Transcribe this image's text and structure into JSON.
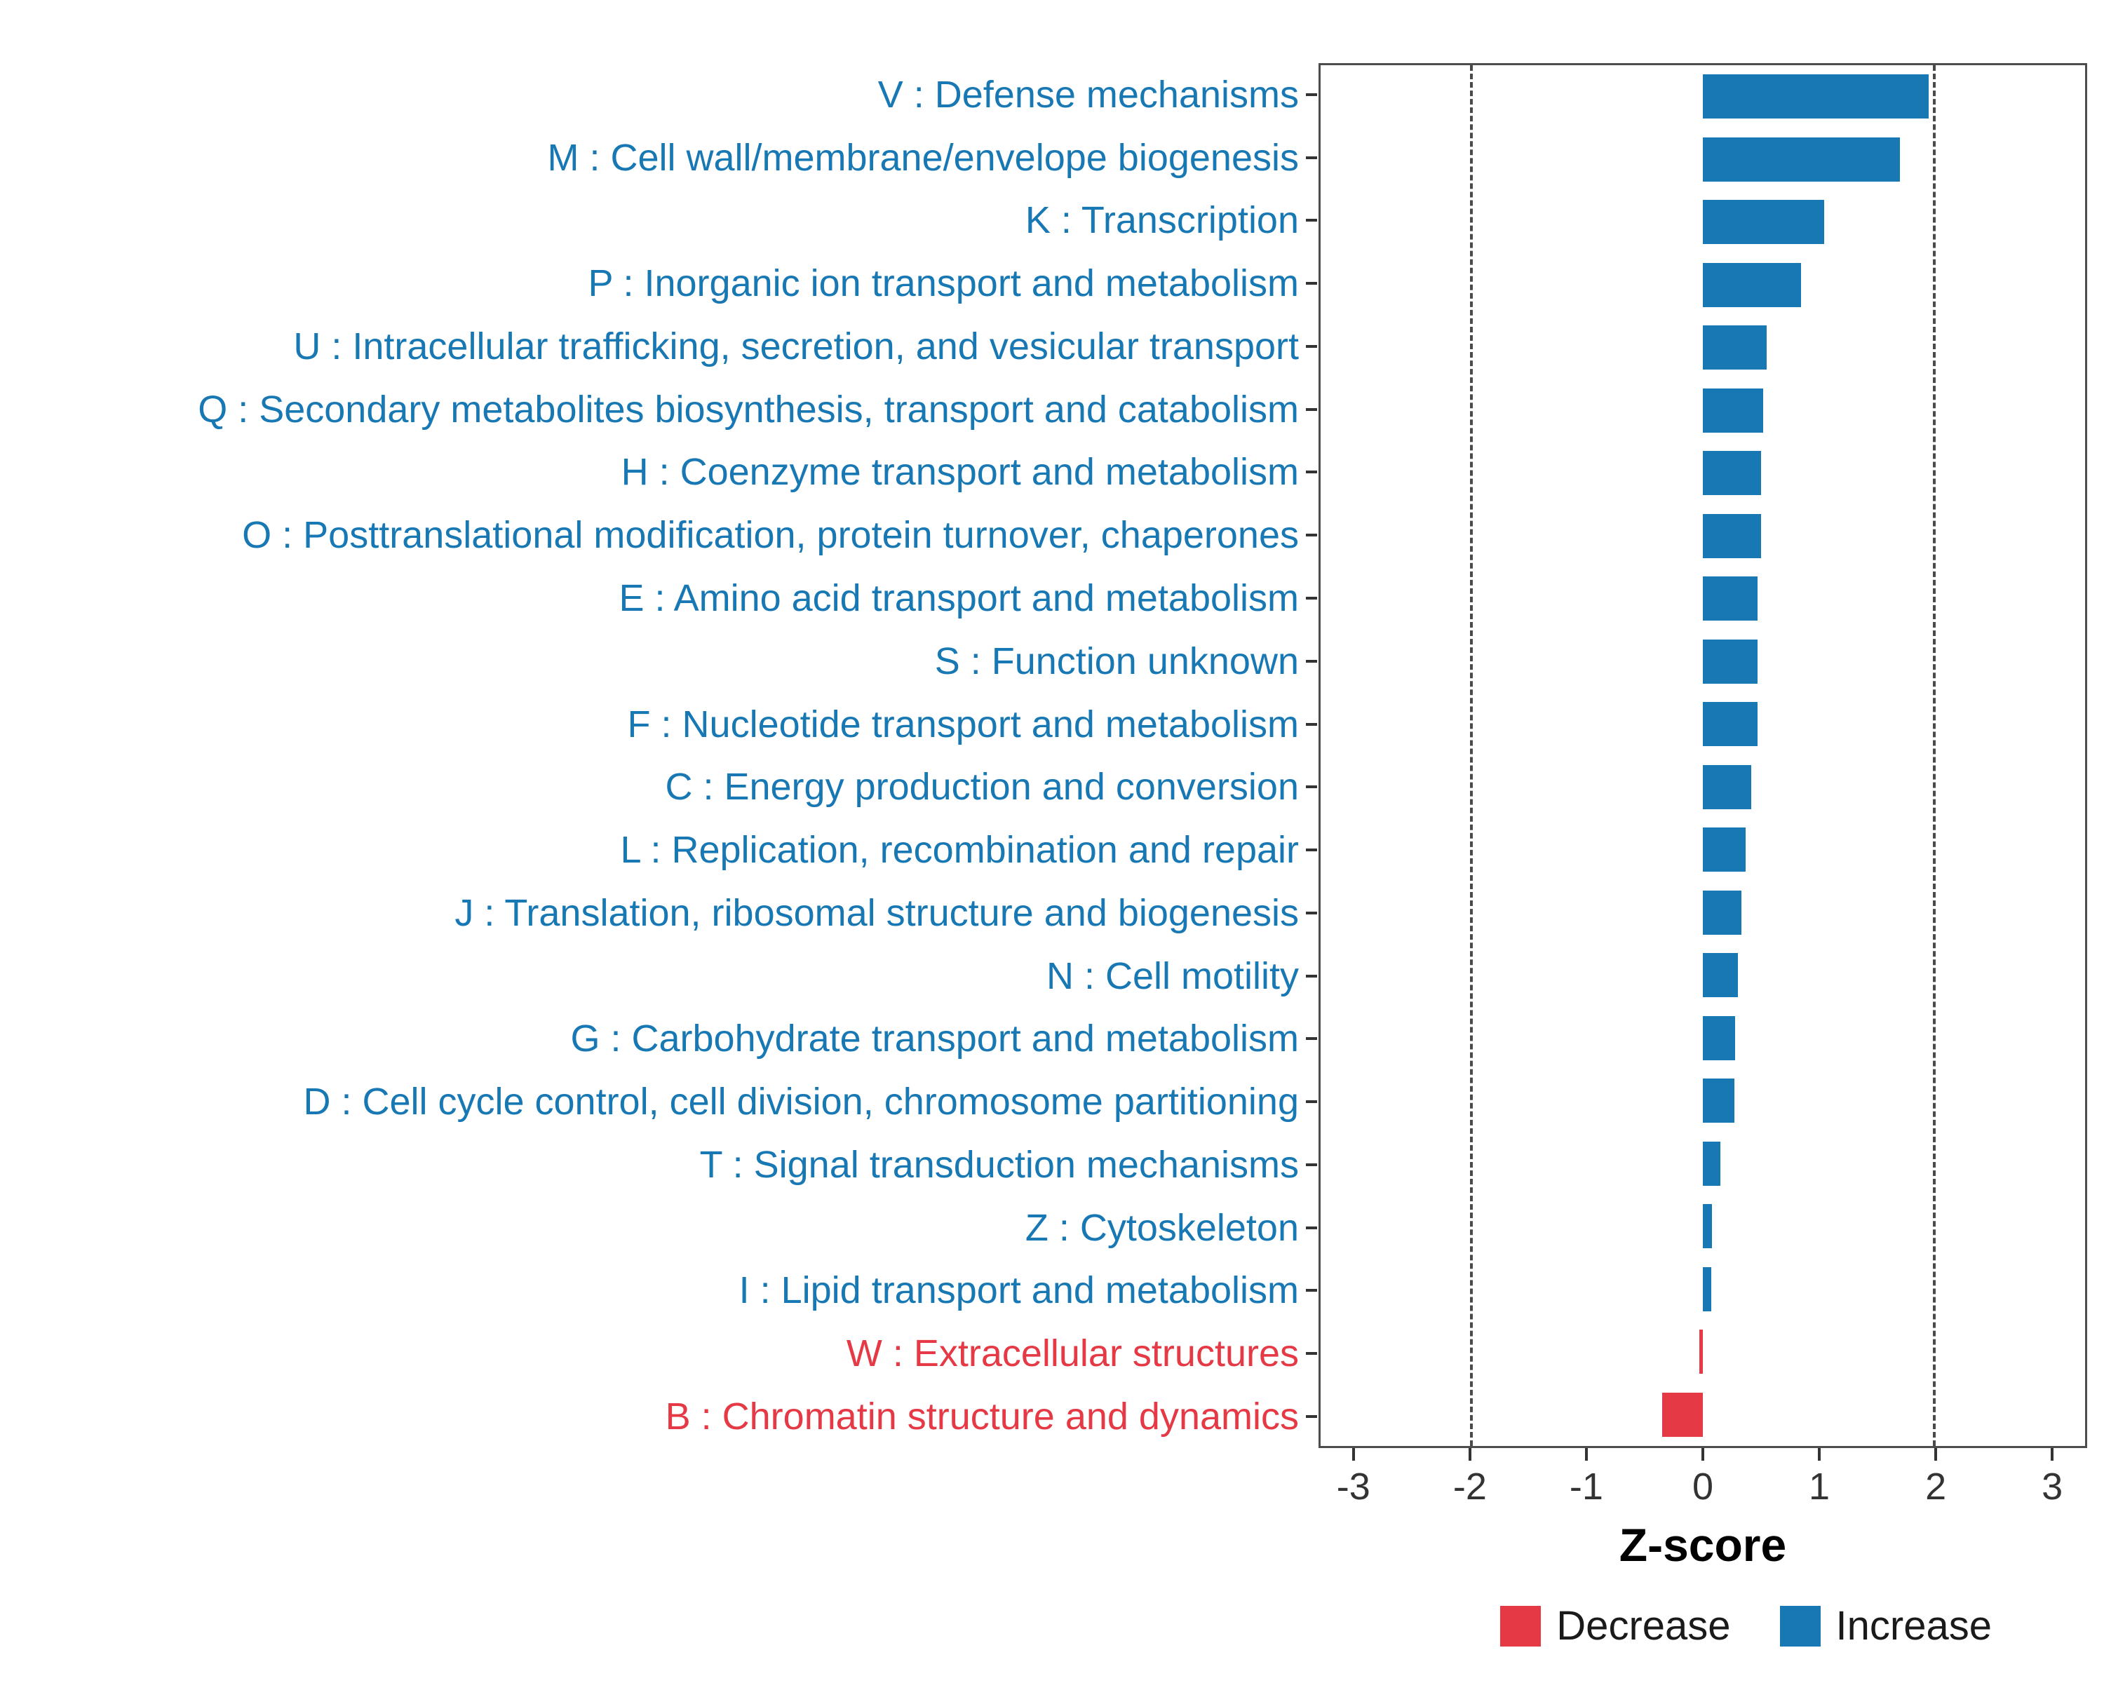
{
  "chart_data": {
    "type": "bar",
    "orientation": "horizontal",
    "title": "",
    "xlabel": "Z-score",
    "ylabel": "",
    "xlim": [
      -3.3,
      3.3
    ],
    "x_ticks": [
      -3,
      -2,
      -1,
      0,
      1,
      2,
      3
    ],
    "ref_lines": [
      -2,
      2
    ],
    "grid": false,
    "legend_position": "bottom-right",
    "categories": [
      "V : Defense mechanisms",
      "M : Cell wall/membrane/envelope biogenesis",
      "K : Transcription",
      "P : Inorganic ion transport and metabolism",
      "U : Intracellular trafficking, secretion, and vesicular transport",
      "Q : Secondary metabolites biosynthesis, transport and catabolism",
      "H : Coenzyme transport and metabolism",
      "O : Posttranslational modification, protein turnover, chaperones",
      "E : Amino acid transport and metabolism",
      "S : Function unknown",
      "F : Nucleotide transport and metabolism",
      "C : Energy production and conversion",
      "L : Replication, recombination and repair",
      "J : Translation, ribosomal structure and biogenesis",
      "N : Cell motility",
      "G : Carbohydrate transport and metabolism",
      "D : Cell cycle control, cell division, chromosome partitioning",
      "T : Signal transduction mechanisms",
      "Z : Cytoskeleton",
      "I : Lipid transport and metabolism",
      "W : Extracellular structures",
      "B : Chromatin structure and dynamics"
    ],
    "values": [
      1.95,
      1.7,
      1.05,
      0.85,
      0.55,
      0.52,
      0.5,
      0.5,
      0.47,
      0.47,
      0.47,
      0.42,
      0.37,
      0.33,
      0.3,
      0.28,
      0.27,
      0.15,
      0.08,
      0.07,
      -0.03,
      -0.35
    ],
    "directions": [
      "increase",
      "increase",
      "increase",
      "increase",
      "increase",
      "increase",
      "increase",
      "increase",
      "increase",
      "increase",
      "increase",
      "increase",
      "increase",
      "increase",
      "increase",
      "increase",
      "increase",
      "increase",
      "increase",
      "increase",
      "decrease",
      "decrease"
    ]
  },
  "legend": {
    "items": [
      {
        "label": "Decrease",
        "color_key": "decrease"
      },
      {
        "label": "Increase",
        "color_key": "increase"
      }
    ]
  },
  "colors": {
    "increase": "#1878B4",
    "decrease": "#E53945",
    "axis_text": "#333333",
    "panel_border": "#4D4D4D",
    "ref_line": "#4A4A4A"
  }
}
